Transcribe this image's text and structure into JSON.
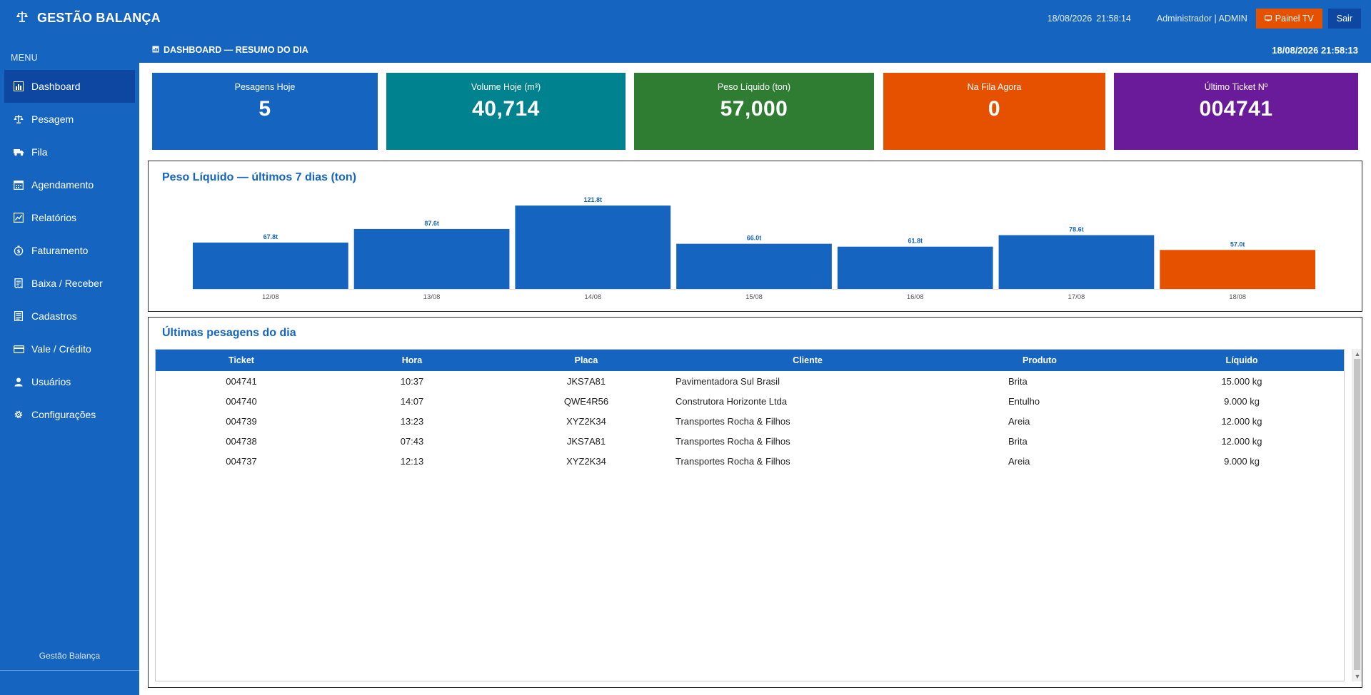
{
  "app": {
    "title": "GESTÃO BALANÇA",
    "footer": "Gestão Balança"
  },
  "topbar": {
    "date": "18/08/2026",
    "time": "21:58:14",
    "user": "Administrador | ADMIN",
    "tv_label": "Painel TV",
    "logout_label": "Sair"
  },
  "sidebar": {
    "menu_title": "MENU",
    "items": [
      {
        "label": "Dashboard",
        "icon": "chart-icon"
      },
      {
        "label": "Pesagem",
        "icon": "scale-icon"
      },
      {
        "label": "Fila",
        "icon": "truck-icon"
      },
      {
        "label": "Agendamento",
        "icon": "calendar-icon"
      },
      {
        "label": "Relatórios",
        "icon": "report-icon"
      },
      {
        "label": "Faturamento",
        "icon": "money-icon"
      },
      {
        "label": "Baixa / Receber",
        "icon": "receipt-icon"
      },
      {
        "label": "Cadastros",
        "icon": "list-icon"
      },
      {
        "label": "Vale / Crédito",
        "icon": "card-icon"
      },
      {
        "label": "Usuários",
        "icon": "user-icon"
      },
      {
        "label": "Configurações",
        "icon": "gear-icon"
      }
    ]
  },
  "header": {
    "title": "DASHBOARD — RESUMO DO DIA",
    "datetime": "18/08/2026 21:58:13"
  },
  "kpis": [
    {
      "label": "Pesagens Hoje",
      "value": "5",
      "color": "#1565c0"
    },
    {
      "label": "Volume Hoje (m³)",
      "value": "40,714",
      "color": "#00838f"
    },
    {
      "label": "Peso Líquido (ton)",
      "value": "57,000",
      "color": "#2e7d32"
    },
    {
      "label": "Na Fila Agora",
      "value": "0",
      "color": "#e65100"
    },
    {
      "label": "Último Ticket Nº",
      "value": "004741",
      "color": "#6a1b9a"
    }
  ],
  "chart_panel": {
    "title": "Peso Líquido — últimos 7 dias (ton)"
  },
  "chart_data": {
    "type": "bar",
    "title": "Peso Líquido — últimos 7 dias (ton)",
    "categories": [
      "12/08",
      "13/08",
      "14/08",
      "15/08",
      "16/08",
      "17/08",
      "18/08"
    ],
    "values": [
      67.8,
      87.6,
      121.8,
      66.0,
      61.8,
      78.6,
      57.0
    ],
    "value_labels": [
      "67.8t",
      "87.6t",
      "121.8t",
      "66.0t",
      "61.8t",
      "78.6t",
      "57.0t"
    ],
    "colors": [
      "#1565c0",
      "#1565c0",
      "#1565c0",
      "#1565c0",
      "#1565c0",
      "#1565c0",
      "#e65100"
    ],
    "highlight_last": true,
    "grid": false,
    "legend": "none"
  },
  "table": {
    "title": "Últimas pesagens do dia",
    "columns": [
      "Ticket",
      "Hora",
      "Placa",
      "Cliente",
      "Produto",
      "Líquido"
    ],
    "rows": [
      [
        "004741",
        "10:37",
        "JKS7A81",
        "Pavimentadora Sul Brasil",
        "Brita",
        "15.000 kg"
      ],
      [
        "004740",
        "14:07",
        "QWE4R56",
        "Construtora Horizonte Ltda",
        "Entulho",
        "9.000 kg"
      ],
      [
        "004739",
        "13:23",
        "XYZ2K34",
        "Transportes Rocha & Filhos",
        "Areia",
        "12.000 kg"
      ],
      [
        "004738",
        "07:43",
        "JKS7A81",
        "Transportes Rocha & Filhos",
        "Brita",
        "12.000 kg"
      ],
      [
        "004737",
        "12:13",
        "XYZ2K34",
        "Transportes Rocha & Filhos",
        "Areia",
        "9.000 kg"
      ]
    ]
  }
}
